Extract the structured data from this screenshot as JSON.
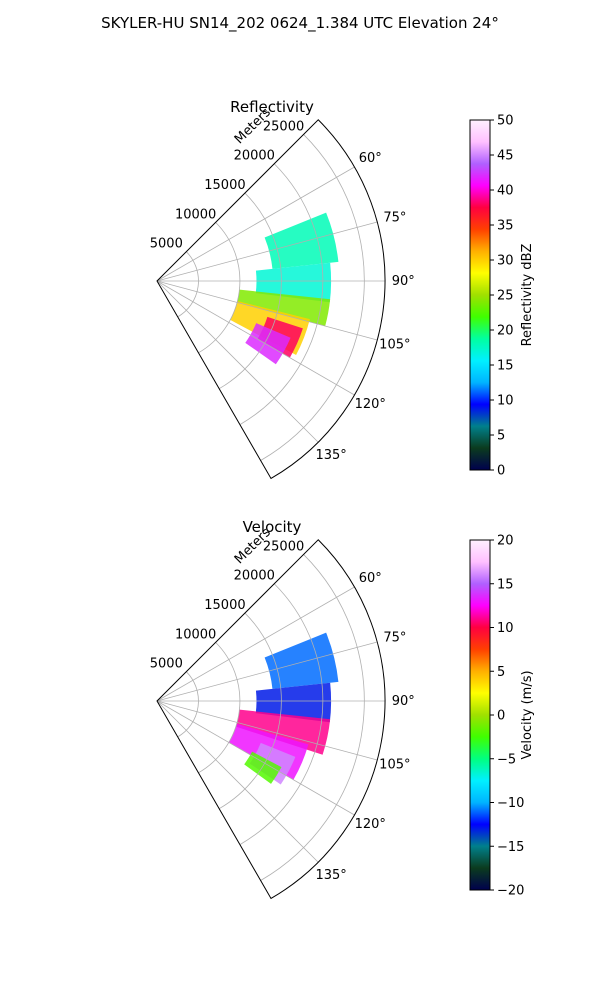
{
  "figure": {
    "title": "SKYLER-HU  SN14_202  0624_1.384 UTC Elevation 24°"
  },
  "chart_data": [
    {
      "type": "polar_sector",
      "title": "Reflectivity",
      "radial_label": "Meters",
      "radial_ticks": [
        5000,
        10000,
        15000,
        20000,
        25000
      ],
      "radial_tick_labels": [
        "5000",
        "10000",
        "15000",
        "20000",
        "25000"
      ],
      "r_max": 27500,
      "theta_range_deg": [
        45,
        150
      ],
      "theta_ticks": [
        60,
        75,
        90,
        105,
        120,
        135
      ],
      "theta_tick_labels": [
        "60°",
        "75°",
        "90°",
        "105°",
        "120°",
        "135°"
      ],
      "colorbar": {
        "label": "Reflectivity dBZ",
        "range": [
          0,
          50
        ],
        "ticks": [
          0,
          5,
          10,
          15,
          20,
          25,
          30,
          35,
          40,
          45,
          50
        ],
        "tick_labels": [
          "0",
          "5",
          "10",
          "15",
          "20",
          "25",
          "30",
          "35",
          "40",
          "45",
          "50"
        ],
        "colormap": [
          "#00004d",
          "#0b3b1e",
          "#00808b",
          "#0000ff",
          "#00b4ff",
          "#00f0ff",
          "#00ffa0",
          "#40ff00",
          "#a0e000",
          "#ffff00",
          "#ffb000",
          "#ff4000",
          "#ff0040",
          "#ff00ff",
          "#b060ff",
          "#ffc0ff",
          "#fff0ff"
        ]
      },
      "echo_regions": [
        {
          "theta": [
            68,
            84
          ],
          "r": [
            14000,
            22000
          ],
          "value": 18
        },
        {
          "theta": [
            84,
            97
          ],
          "r": [
            12000,
            21000
          ],
          "value": 17
        },
        {
          "theta": [
            96,
            105
          ],
          "r": [
            10000,
            21000
          ],
          "value": 24
        },
        {
          "theta": [
            104,
            118
          ],
          "r": [
            10000,
            19000
          ],
          "value": 30
        },
        {
          "theta": [
            108,
            120
          ],
          "r": [
            14000,
            18500
          ],
          "value": 38
        },
        {
          "theta": [
            113,
            125
          ],
          "r": [
            13000,
            17500
          ],
          "value": 42
        }
      ]
    },
    {
      "type": "polar_sector",
      "title": "Velocity",
      "radial_label": "Meters",
      "radial_ticks": [
        5000,
        10000,
        15000,
        20000,
        25000
      ],
      "radial_tick_labels": [
        "5000",
        "10000",
        "15000",
        "20000",
        "25000"
      ],
      "r_max": 27500,
      "theta_range_deg": [
        45,
        150
      ],
      "theta_ticks": [
        60,
        75,
        90,
        105,
        120,
        135
      ],
      "theta_tick_labels": [
        "60°",
        "75°",
        "90°",
        "105°",
        "120°",
        "135°"
      ],
      "colorbar": {
        "label": "Velocity (m/s)",
        "range": [
          -20,
          20
        ],
        "ticks": [
          -20,
          -15,
          -10,
          -5,
          0,
          5,
          10,
          15,
          20
        ],
        "tick_labels": [
          "−20",
          "−15",
          "−10",
          "−5",
          "0",
          "5",
          "10",
          "15",
          "20"
        ],
        "colormap": [
          "#00004d",
          "#0b3b1e",
          "#00808b",
          "#0000ff",
          "#00b4ff",
          "#00f0ff",
          "#00ff80",
          "#40ff00",
          "#a0e000",
          "#ffff00",
          "#ffb000",
          "#ff4000",
          "#ff0040",
          "#ff00ff",
          "#b060ff",
          "#ffc0ff",
          "#fff0ff"
        ]
      },
      "echo_regions": [
        {
          "theta": [
            68,
            84
          ],
          "r": [
            14000,
            22000
          ],
          "value": -11
        },
        {
          "theta": [
            84,
            97
          ],
          "r": [
            12000,
            21000
          ],
          "value": -13
        },
        {
          "theta": [
            96,
            108
          ],
          "r": [
            10000,
            21000
          ],
          "value": 11
        },
        {
          "theta": [
            106,
            120
          ],
          "r": [
            10000,
            19000
          ],
          "value": 13
        },
        {
          "theta": [
            112,
            124
          ],
          "r": [
            13500,
            18000
          ],
          "value": 16
        },
        {
          "theta": [
            118,
            126
          ],
          "r": [
            13000,
            17000
          ],
          "value": -2
        }
      ]
    }
  ]
}
